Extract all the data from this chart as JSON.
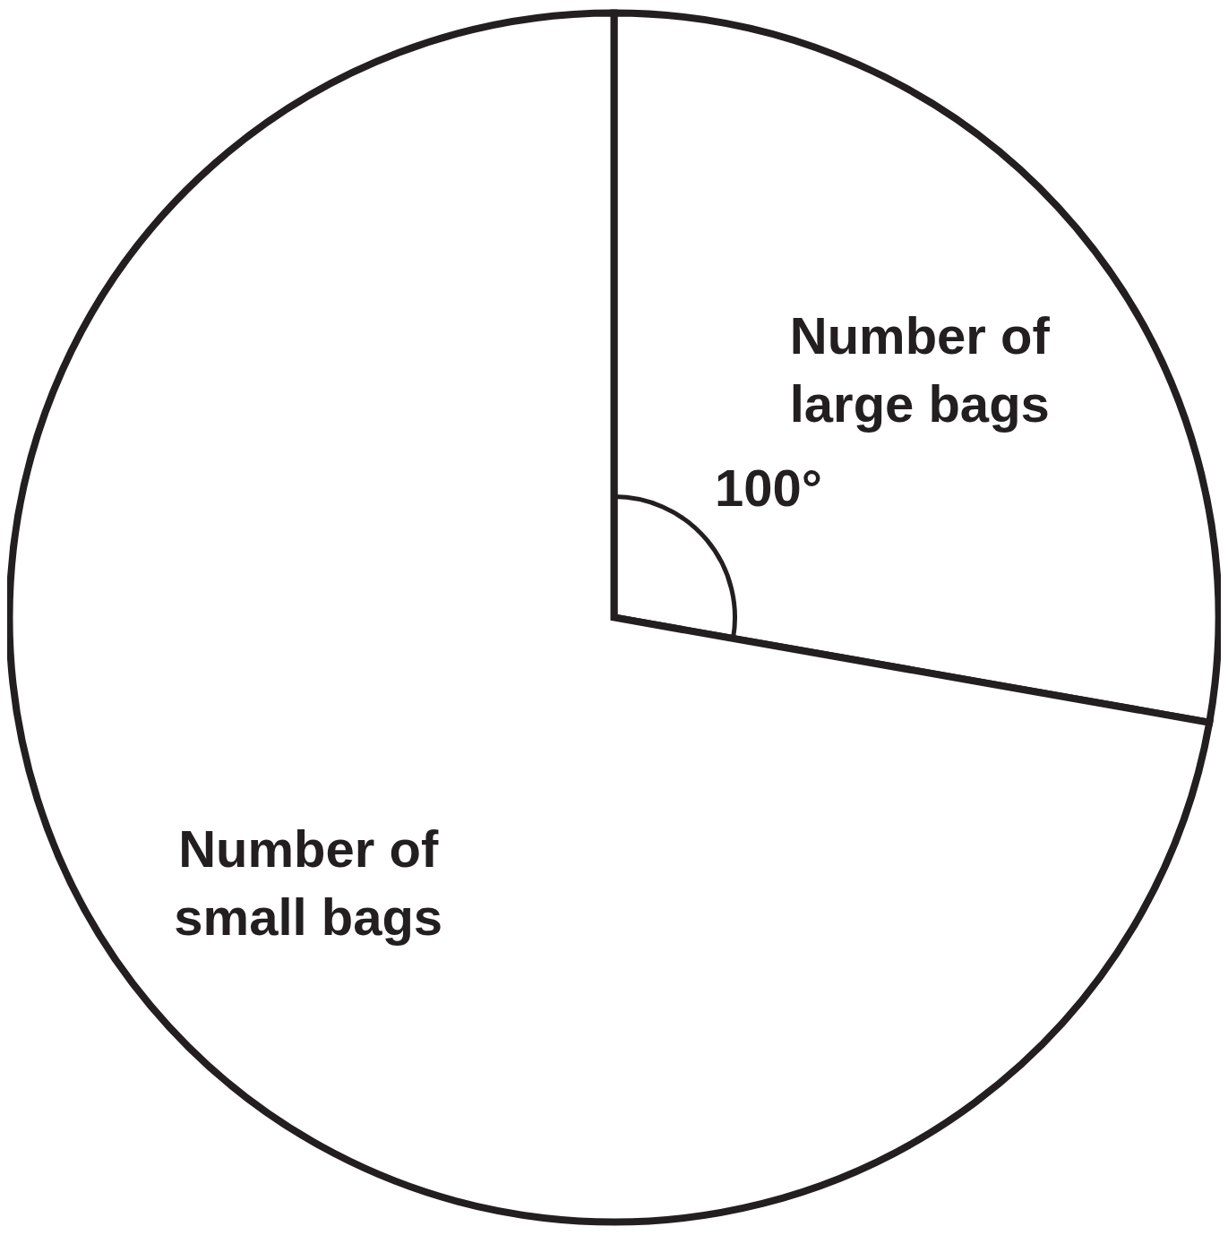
{
  "chart_data": {
    "type": "pie",
    "categories": [
      "Number of large bags",
      "Number of small bags"
    ],
    "values": [
      100,
      260
    ],
    "value_labels": [
      "100°",
      null
    ],
    "colors": [
      "#ffffff",
      "#ffffff"
    ]
  }
}
